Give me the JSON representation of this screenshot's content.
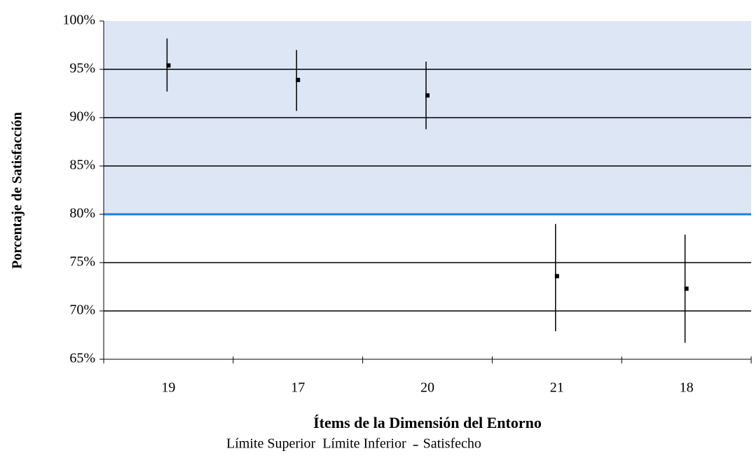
{
  "chart_data": {
    "type": "errorbar",
    "y_axis_label": "Porcentaje de Satisfacción",
    "x_axis_label": "Ítems de la Dimensión del Entorno",
    "categories": [
      "19",
      "17",
      "20",
      "21",
      "18"
    ],
    "series": [
      {
        "name": "Límite Superior",
        "color": "#000000",
        "values": [
          98.2,
          97.0,
          95.8,
          79.0,
          77.9
        ]
      },
      {
        "name": "Límite Inferior",
        "color": "#000000",
        "values": [
          92.7,
          90.7,
          88.8,
          67.9,
          66.7
        ]
      },
      {
        "name": "Satisfecho",
        "color": "#000000",
        "values": [
          95.4,
          93.9,
          92.3,
          73.6,
          72.3
        ]
      }
    ],
    "ylim": [
      65,
      100
    ],
    "yticks": [
      {
        "value": 65,
        "label": "65%"
      },
      {
        "value": 70,
        "label": "70%"
      },
      {
        "value": 75,
        "label": "75%"
      },
      {
        "value": 80,
        "label": "80%"
      },
      {
        "value": 85,
        "label": "85%"
      },
      {
        "value": 90,
        "label": "90%"
      },
      {
        "value": 95,
        "label": "95%"
      },
      {
        "value": 100,
        "label": "100%"
      }
    ],
    "threshold": 80,
    "threshold_color": "#1f7fe0",
    "band_color": "#dde6f5",
    "grid": true
  }
}
